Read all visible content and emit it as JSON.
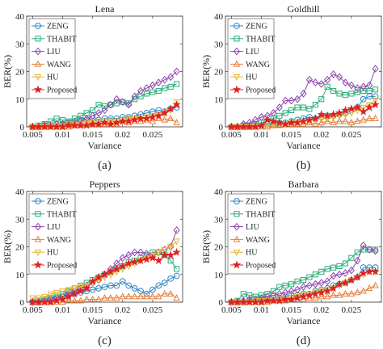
{
  "chart_data": [
    {
      "type": "line",
      "title": "Lena",
      "caption": "(a)",
      "xlabel": "Variance",
      "ylabel": "BER(%)",
      "xlim": [
        0.004,
        0.03
      ],
      "ylim": [
        0,
        40
      ],
      "xticks": [
        0.005,
        0.01,
        0.015,
        0.02,
        0.025
      ],
      "xtick_labels": [
        "0.005",
        "0.01",
        "0.015",
        "0.02",
        "0.025"
      ],
      "yticks": [
        0,
        10,
        20,
        30,
        40
      ],
      "ytick_labels": [
        "0",
        "10",
        "20",
        "30",
        "40"
      ],
      "legend_position": "top-left",
      "x": [
        0.005,
        0.006,
        0.007,
        0.008,
        0.009,
        0.01,
        0.011,
        0.012,
        0.013,
        0.014,
        0.015,
        0.016,
        0.017,
        0.018,
        0.019,
        0.02,
        0.021,
        0.022,
        0.023,
        0.024,
        0.025,
        0.026,
        0.027,
        0.028,
        0.029
      ],
      "series": [
        {
          "name": "ZENG",
          "values": [
            0,
            0,
            0.5,
            0.5,
            1,
            1,
            1.5,
            2,
            2.5,
            2.5,
            3,
            2.5,
            3,
            3,
            3,
            3.5,
            3.5,
            4,
            4.5,
            5,
            5.5,
            6,
            5.5,
            6.5,
            7
          ]
        },
        {
          "name": "THABIT",
          "values": [
            0,
            0.5,
            1,
            2,
            3,
            2.5,
            2,
            3,
            4,
            5,
            6,
            8,
            7.5,
            8,
            8.5,
            9,
            8.5,
            10,
            11,
            12,
            12.5,
            13,
            14,
            14.5,
            15.5
          ]
        },
        {
          "name": "LIU",
          "values": [
            0,
            0,
            0.5,
            0.5,
            1,
            1,
            1,
            1.5,
            2,
            3,
            4,
            5,
            6,
            8,
            10,
            9,
            8,
            11,
            13,
            14,
            15,
            16,
            17,
            18,
            20
          ]
        },
        {
          "name": "WANG",
          "values": [
            0,
            0,
            0,
            0,
            0,
            0,
            0,
            0.5,
            0.5,
            1,
            1,
            1,
            1,
            1.5,
            1,
            2,
            1.5,
            2,
            2,
            2.5,
            2,
            3,
            2.5,
            3,
            1.5
          ]
        },
        {
          "name": "HU",
          "values": [
            0,
            0,
            0,
            0.5,
            0.5,
            0.5,
            1,
            1,
            1,
            1.5,
            1.5,
            2,
            2,
            2.5,
            2,
            2.5,
            3,
            3,
            3,
            3.5,
            4,
            4.5,
            5,
            6,
            9
          ]
        },
        {
          "name": "Proposed",
          "values": [
            0,
            0,
            0,
            0,
            0,
            0,
            0.5,
            0.5,
            0.5,
            0.5,
            1,
            1,
            1.5,
            1,
            1.5,
            2,
            2,
            2.5,
            3,
            3,
            3.5,
            4,
            5,
            6.5,
            8
          ]
        }
      ]
    },
    {
      "type": "line",
      "title": "Goldhill",
      "caption": "(b)",
      "xlabel": "Variance",
      "ylabel": "BER(%)",
      "xlim": [
        0.004,
        0.03
      ],
      "ylim": [
        0,
        40
      ],
      "xticks": [
        0.005,
        0.01,
        0.015,
        0.02,
        0.025
      ],
      "xtick_labels": [
        "0.005",
        "0.01",
        "0.015",
        "0.02",
        "0.025"
      ],
      "yticks": [
        0,
        10,
        20,
        30,
        40
      ],
      "ytick_labels": [
        "0",
        "10",
        "20",
        "30",
        "40"
      ],
      "legend_position": "top-left",
      "x": [
        0.005,
        0.006,
        0.007,
        0.008,
        0.009,
        0.01,
        0.011,
        0.012,
        0.013,
        0.014,
        0.015,
        0.016,
        0.017,
        0.018,
        0.019,
        0.02,
        0.021,
        0.022,
        0.023,
        0.024,
        0.025,
        0.026,
        0.027,
        0.028,
        0.029
      ],
      "series": [
        {
          "name": "ZENG",
          "values": [
            0,
            0,
            0,
            0,
            0.5,
            0.5,
            1,
            1,
            1.5,
            1.5,
            2,
            2.5,
            3,
            3.5,
            3,
            3.5,
            4,
            4,
            4.5,
            5,
            6,
            7,
            10,
            11,
            11
          ]
        },
        {
          "name": "THABIT",
          "values": [
            0,
            0,
            0.5,
            0.5,
            1,
            1.5,
            2,
            3,
            4,
            5,
            6,
            7,
            7,
            6.5,
            8,
            10,
            14.5,
            13,
            12,
            11.5,
            12,
            12.5,
            13,
            13,
            13.5
          ]
        },
        {
          "name": "LIU",
          "values": [
            0,
            0,
            1,
            1.5,
            2.5,
            3.5,
            4,
            5,
            7,
            9.5,
            9.5,
            10,
            12,
            17,
            16,
            15.5,
            17,
            19,
            18,
            16,
            15,
            14,
            14.5,
            15,
            21
          ]
        },
        {
          "name": "WANG",
          "values": [
            0,
            0,
            0,
            0,
            0,
            0,
            0,
            0.5,
            0.5,
            1,
            1,
            1,
            1,
            1.5,
            1,
            1.5,
            2,
            1.5,
            2,
            2,
            1.5,
            2,
            2.5,
            3,
            3
          ]
        },
        {
          "name": "HU",
          "values": [
            0,
            0,
            0,
            0,
            0,
            0.5,
            0.5,
            0.5,
            1,
            1,
            1.5,
            1.5,
            2,
            2,
            2.5,
            3,
            3,
            3.5,
            4,
            4.5,
            5,
            6,
            7,
            8,
            9.5
          ]
        },
        {
          "name": "Proposed",
          "values": [
            0,
            0,
            0,
            0,
            0,
            0.5,
            2.5,
            2,
            1.5,
            1,
            1.5,
            1.5,
            2,
            2.5,
            3,
            4.5,
            4,
            4.5,
            5,
            6,
            6.5,
            7,
            5.5,
            7,
            8
          ]
        }
      ]
    },
    {
      "type": "line",
      "title": "Peppers",
      "caption": "(c)",
      "xlabel": "Variance",
      "ylabel": "BER(%)",
      "xlim": [
        0.004,
        0.03
      ],
      "ylim": [
        0,
        40
      ],
      "xticks": [
        0.005,
        0.01,
        0.015,
        0.02,
        0.025
      ],
      "xtick_labels": [
        "0.005",
        "0.01",
        "0.015",
        "0.02",
        "0.025"
      ],
      "yticks": [
        0,
        10,
        20,
        30,
        40
      ],
      "ytick_labels": [
        "0",
        "10",
        "20",
        "30",
        "40"
      ],
      "legend_position": "top-left",
      "x": [
        0.005,
        0.006,
        0.007,
        0.008,
        0.009,
        0.01,
        0.011,
        0.012,
        0.013,
        0.014,
        0.015,
        0.016,
        0.017,
        0.018,
        0.019,
        0.02,
        0.021,
        0.022,
        0.023,
        0.024,
        0.025,
        0.026,
        0.027,
        0.028,
        0.029
      ],
      "series": [
        {
          "name": "ZENG",
          "values": [
            0,
            0,
            0.5,
            1,
            1.5,
            2,
            2.5,
            3,
            3.5,
            4,
            4.5,
            5,
            5.5,
            6,
            6,
            7.5,
            6,
            5,
            4,
            3,
            4.5,
            6,
            7,
            8.5,
            9.5
          ]
        },
        {
          "name": "THABIT",
          "values": [
            0,
            0.5,
            1,
            1.5,
            2,
            3,
            4,
            5,
            6,
            7,
            8,
            9,
            10,
            11,
            12,
            13,
            14.5,
            15,
            16,
            17,
            18,
            18,
            17,
            15,
            12
          ]
        },
        {
          "name": "LIU",
          "values": [
            0,
            0,
            0.5,
            1,
            1.5,
            2,
            3,
            4,
            5,
            6,
            7,
            8,
            10,
            12,
            14,
            16,
            17,
            18,
            18,
            17.5,
            17,
            18,
            19,
            20,
            26
          ]
        },
        {
          "name": "WANG",
          "values": [
            0,
            0,
            0,
            0,
            0,
            0,
            0.5,
            0.5,
            0.5,
            1,
            1,
            1,
            1.5,
            1.5,
            1.5,
            2,
            2,
            2,
            2,
            2,
            2,
            2,
            3,
            3,
            1.5
          ]
        },
        {
          "name": "HU",
          "values": [
            1.5,
            1.5,
            2,
            3,
            3.5,
            4,
            4.5,
            5,
            5.5,
            6,
            7,
            8,
            9,
            10,
            11,
            12,
            13,
            14,
            15,
            16,
            17,
            18,
            19,
            20,
            22
          ]
        },
        {
          "name": "Proposed",
          "values": [
            0,
            0,
            0,
            0,
            0.5,
            1,
            2,
            3,
            4,
            5,
            7.5,
            9,
            10,
            11,
            12,
            13,
            14,
            14.5,
            15,
            15.5,
            16,
            15,
            17,
            17,
            18
          ]
        }
      ]
    },
    {
      "type": "line",
      "title": "Barbara",
      "caption": "(d)",
      "xlabel": "Variance",
      "ylabel": "BER(%)",
      "xlim": [
        0.004,
        0.03
      ],
      "ylim": [
        0,
        40
      ],
      "xticks": [
        0.005,
        0.01,
        0.015,
        0.02,
        0.025
      ],
      "xtick_labels": [
        "0.005",
        "0.01",
        "0.015",
        "0.02",
        "0.025"
      ],
      "yticks": [
        0,
        10,
        20,
        30,
        40
      ],
      "ytick_labels": [
        "0",
        "10",
        "20",
        "30",
        "40"
      ],
      "legend_position": "top-left",
      "x": [
        0.005,
        0.006,
        0.007,
        0.008,
        0.009,
        0.01,
        0.011,
        0.012,
        0.013,
        0.014,
        0.015,
        0.016,
        0.017,
        0.018,
        0.019,
        0.02,
        0.021,
        0.022,
        0.023,
        0.024,
        0.025,
        0.026,
        0.027,
        0.028,
        0.029
      ],
      "series": [
        {
          "name": "ZENG",
          "values": [
            0,
            0,
            0,
            0.5,
            0.5,
            1,
            1,
            1.5,
            1.5,
            2,
            2.5,
            2.5,
            3,
            3,
            4,
            4.5,
            5,
            6,
            6.5,
            7,
            8,
            9,
            12.5,
            12.5,
            12.5
          ]
        },
        {
          "name": "THABIT",
          "values": [
            0,
            0.5,
            3,
            2.5,
            2,
            2.5,
            3,
            4,
            5.5,
            6,
            6.5,
            7.5,
            8,
            9,
            10,
            11,
            12,
            12.5,
            13,
            14,
            16,
            18,
            19,
            19,
            19
          ]
        },
        {
          "name": "LIU",
          "values": [
            0,
            0,
            0.5,
            1,
            1,
            1.5,
            2,
            2.5,
            3,
            3.5,
            4,
            4.5,
            5.5,
            6,
            6.5,
            7,
            7.5,
            9.5,
            10,
            10.5,
            11.5,
            15,
            20.5,
            19,
            18.5
          ]
        },
        {
          "name": "WANG",
          "values": [
            0,
            0,
            0,
            0,
            0,
            0,
            0,
            0.5,
            0.5,
            0.5,
            1,
            1,
            1,
            1.5,
            1.5,
            2,
            2,
            2.5,
            2.5,
            3,
            3,
            3.5,
            4,
            5,
            6
          ]
        },
        {
          "name": "HU",
          "values": [
            0,
            0,
            0,
            0,
            0.5,
            0.5,
            0.5,
            1,
            1,
            1.5,
            1.5,
            2,
            2.5,
            3,
            3.5,
            4,
            4.5,
            5,
            6,
            7,
            8,
            9,
            10,
            11,
            11
          ]
        },
        {
          "name": "Proposed",
          "values": [
            0,
            0,
            0,
            0,
            0,
            0,
            0.5,
            0.5,
            0.5,
            1,
            1,
            1.5,
            2,
            2.5,
            3,
            3.5,
            4,
            5,
            6.5,
            7,
            8,
            9,
            10.5,
            11,
            11
          ]
        }
      ]
    }
  ],
  "series_style": {
    "ZENG": {
      "color": "#2e86c1",
      "marker": "circle"
    },
    "THABIT": {
      "color": "#27ae77",
      "marker": "square"
    },
    "LIU": {
      "color": "#8e44ad",
      "marker": "diamond"
    },
    "WANG": {
      "color": "#e67e3a",
      "marker": "triangle-up"
    },
    "HU": {
      "color": "#e5b531",
      "marker": "triangle-down"
    },
    "Proposed": {
      "color": "#e02020",
      "marker": "star"
    }
  }
}
